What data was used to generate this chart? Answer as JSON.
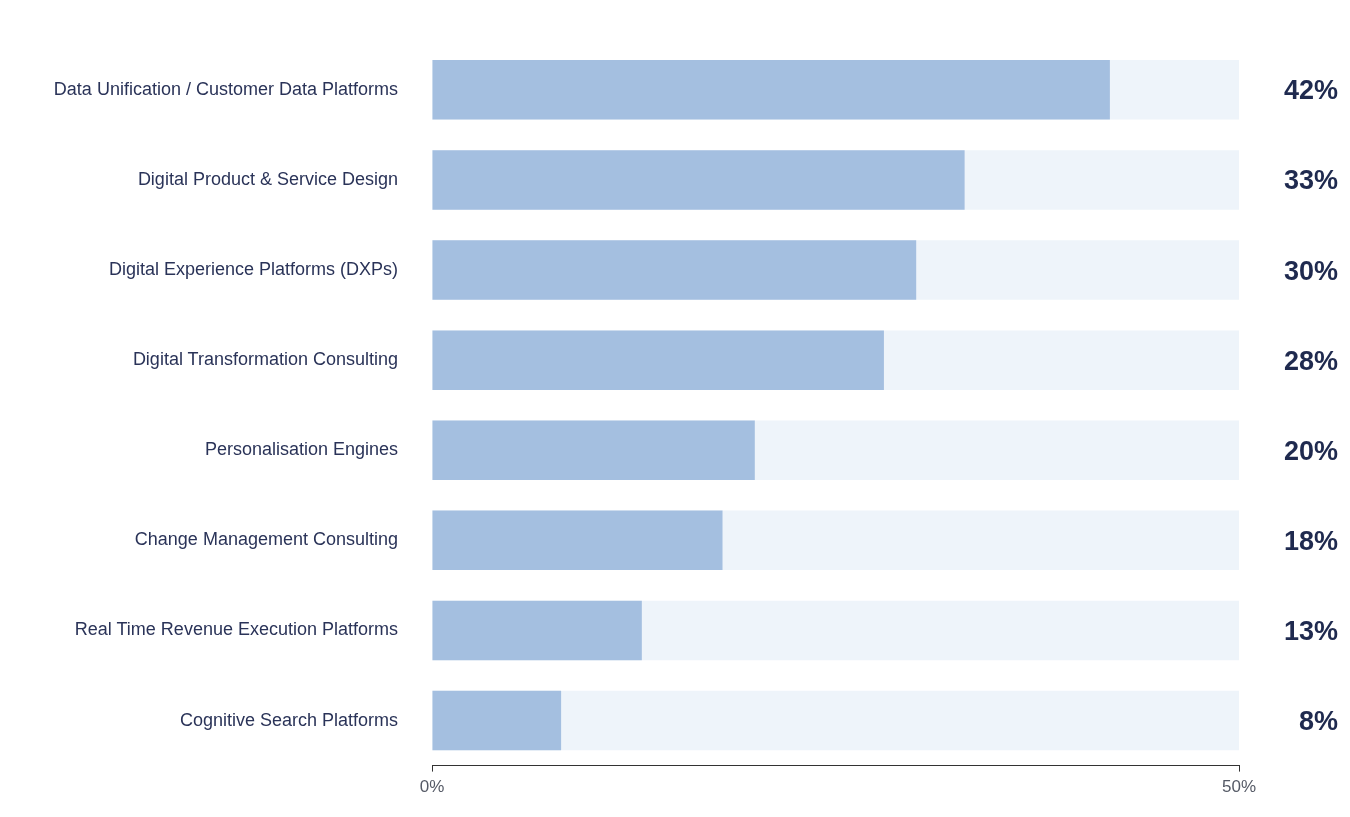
{
  "chart_data": {
    "type": "bar",
    "orientation": "horizontal",
    "categories": [
      "Data Unification / Customer Data Platforms",
      "Digital Product & Service Design",
      "Digital Experience Platforms (DXPs)",
      "Digital Transformation Consulting",
      "Personalisation Engines",
      "Change Management Consulting",
      "Real Time Revenue Execution Platforms",
      "Cognitive Search Platforms"
    ],
    "values": [
      42,
      33,
      30,
      28,
      20,
      18,
      13,
      8
    ],
    "value_labels": [
      "42%",
      "33%",
      "30%",
      "28%",
      "20%",
      "18%",
      "13%",
      "8%"
    ],
    "color": "#a4bfe0",
    "xlim": [
      0,
      50
    ],
    "xticks": [
      {
        "value": 0,
        "label": "0%"
      },
      {
        "value": 50,
        "label": "50%"
      }
    ]
  }
}
